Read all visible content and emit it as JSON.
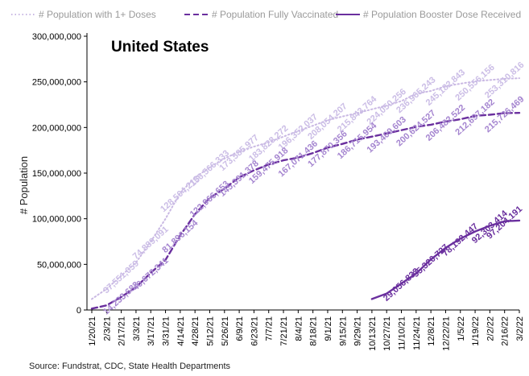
{
  "chart_data": {
    "type": "line",
    "title": "United States",
    "ylabel": "# Population",
    "xlabel": "",
    "ylim": [
      0,
      300000000
    ],
    "y_ticks": [
      "0",
      "50,000,000",
      "100,000,000",
      "150,000,000",
      "200,000,000",
      "250,000,000",
      "300,000,000"
    ],
    "x_tick_labels": [
      "1/20/21",
      "2/3/21",
      "2/17/21",
      "3/3/21",
      "3/17/21",
      "3/31/21",
      "4/14/21",
      "4/28/21",
      "5/12/21",
      "5/26/21",
      "6/9/21",
      "6/23/21",
      "7/7/21",
      "7/21/21",
      "8/4/21",
      "8/18/21",
      "9/1/21",
      "9/15/21",
      "9/29/21",
      "10/13/21",
      "10/27/21",
      "11/10/21",
      "11/24/21",
      "12/8/21",
      "12/22/21",
      "1/5/22",
      "1/19/22",
      "2/2/22",
      "2/16/22",
      "3/2/22"
    ],
    "legend_position": "top",
    "source": "Source: Fundstrat, CDC, State Health Departments",
    "series": [
      {
        "name": "# Population with 1+ Doses",
        "style": "dotted",
        "color": "#c9b8e3",
        "label_color": "#cbbde6",
        "values": [
          12000000,
          23000000,
          37551059,
          52000000,
          74889091,
          100000000,
          128504213,
          145000000,
          156566333,
          166000000,
          173585977,
          179000000,
          183828272,
          190000000,
          196352037,
          202000000,
          208054207,
          212000000,
          215843764,
          220000000,
          224050256,
          229000000,
          236965243,
          240000000,
          245182843,
          248000000,
          250556156,
          252000000,
          253310816,
          254000000
        ],
        "labels": {
          "2": "37,551,059",
          "4": "74,889,091",
          "6": "128,504,213",
          "8": "156,566,333",
          "10": "173,585,977",
          "12": "183,828,272",
          "14": "196,352,037",
          "16": "208,054,207",
          "18": "215,843,764",
          "20": "224,050,256",
          "22": "236,965,243",
          "24": "245,182,843",
          "26": "250,556,156",
          "28": "253,310,816"
        }
      },
      {
        "name": "# Population Fully Vaccinated",
        "style": "dashed",
        "color": "#6a2f9e",
        "label_color": "#a585d0",
        "values": [
          1500000,
          5000000,
          14233683,
          25000000,
          40672341,
          55000000,
          81896154,
          105000000,
          122966653,
          133000000,
          145391378,
          153000000,
          159475918,
          164000000,
          167071436,
          172000000,
          177870356,
          182000000,
          186715954,
          190000000,
          193409603,
          197000000,
          200624527,
          203000000,
          206482522,
          209000000,
          212697182,
          214000000,
          215726469,
          216000000
        ],
        "labels": {
          "2": "14,233,683",
          "4": "40,672,341",
          "6": "81,896,154",
          "8": "122,966,653",
          "10": "145,391,378",
          "12": "159,475,918",
          "14": "167,071,436",
          "16": "177,870,356",
          "18": "186,715,954",
          "20": "193,409,603",
          "22": "200,624,527",
          "24": "206,482,522",
          "26": "212,697,182",
          "28": "215,726,469"
        }
      },
      {
        "name": "# Population Booster Dose Received",
        "style": "solid",
        "color": "#6a2f9e",
        "label_color": "#6a2f9e",
        "values": [
          null,
          null,
          null,
          null,
          null,
          null,
          null,
          null,
          null,
          null,
          null,
          null,
          null,
          null,
          null,
          null,
          null,
          null,
          null,
          12000000,
          18000000,
          29056832,
          40000000,
          55320727,
          68000000,
          78192447,
          86000000,
          92303414,
          97204191,
          98000000
        ],
        "labels": {
          "21": "29,056,832",
          "23": "55,320,727",
          "25": "78,192,447",
          "27": "92,303,414",
          "28": "97,204,191"
        }
      }
    ]
  }
}
